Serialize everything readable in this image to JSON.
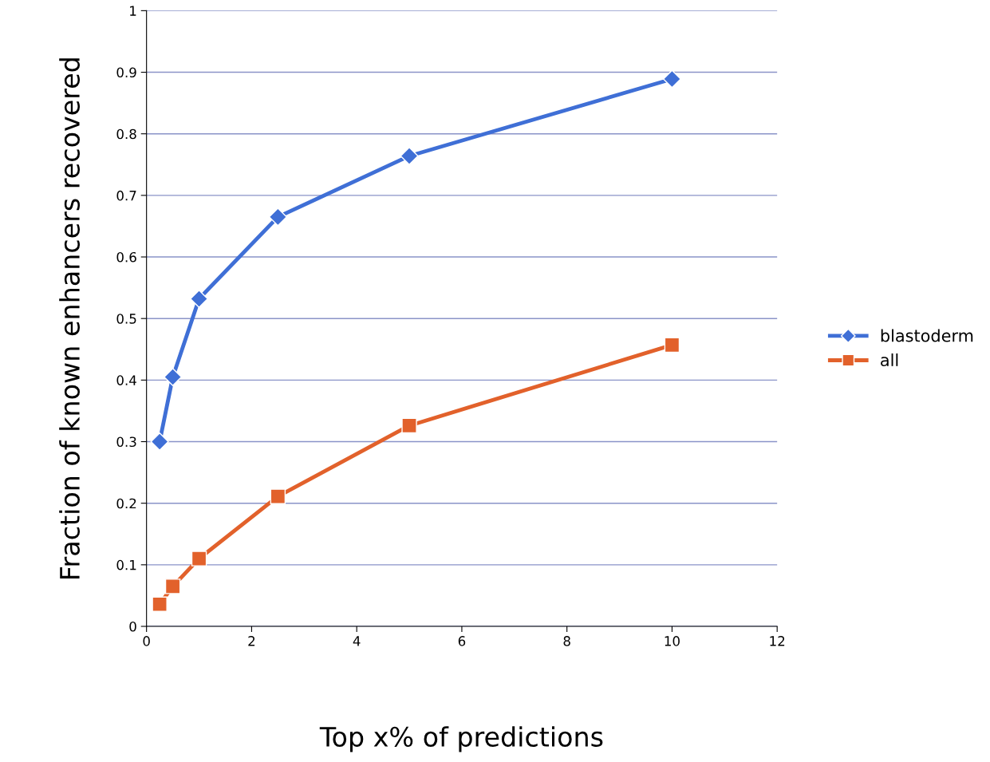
{
  "chart_data": {
    "type": "line",
    "xlabel": "Top x% of predictions",
    "ylabel": "Fraction of known enhancers recovered",
    "xlim": [
      0,
      12
    ],
    "xticks": [
      0,
      2,
      4,
      6,
      8,
      10,
      12
    ],
    "ylim": [
      0,
      1
    ],
    "yticks": [
      0,
      0.1,
      0.2,
      0.3,
      0.4,
      0.5,
      0.6,
      0.7,
      0.8,
      0.9,
      1
    ],
    "grid": "y",
    "legend": "right",
    "line_style": "solid",
    "x": [
      0.25,
      0.5,
      1,
      2.5,
      5,
      10
    ],
    "series": [
      {
        "name": "blastoderm",
        "color": "#3f6fd6",
        "marker": "diamond",
        "values": [
          0.3,
          0.405,
          0.532,
          0.665,
          0.764,
          0.889
        ]
      },
      {
        "name": "all",
        "color": "#e2612b",
        "marker": "square",
        "values": [
          0.036,
          0.065,
          0.11,
          0.211,
          0.326,
          0.457
        ]
      }
    ]
  }
}
